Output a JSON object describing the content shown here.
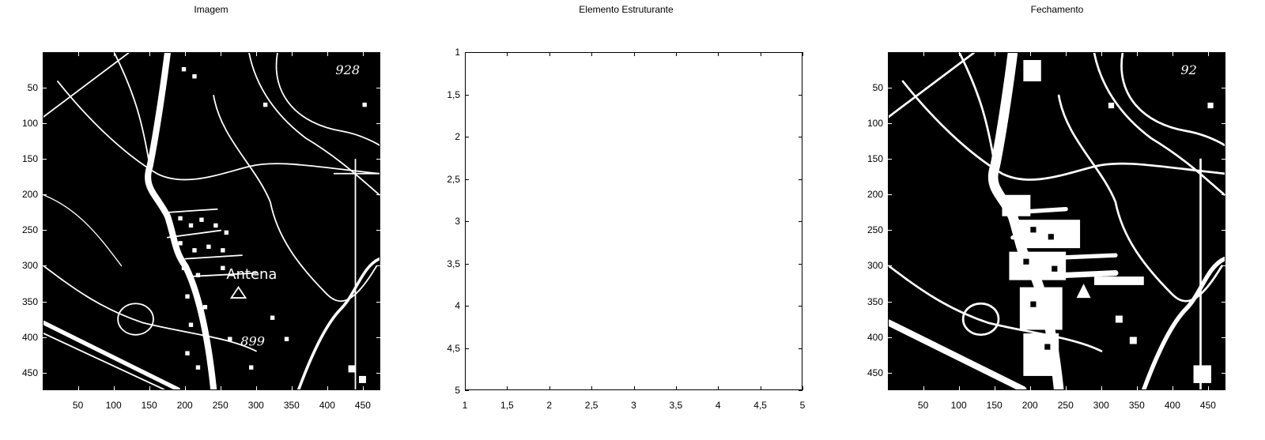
{
  "figure": {
    "panels": [
      {
        "title": "Imagem"
      },
      {
        "title": "Elemento Estruturante"
      },
      {
        "title": "Fechamento"
      }
    ]
  },
  "map_annotations": {
    "label_antena": "Antena",
    "elevation_top": "928",
    "elevation_top_closed": "92",
    "elevation_bottom": "899"
  },
  "chart_data": [
    {
      "type": "heatmap",
      "title": "Imagem",
      "description_kind": "binary image (white features on black background)",
      "xticks": [
        50,
        100,
        150,
        200,
        250,
        300,
        350,
        400,
        450
      ],
      "yticks": [
        50,
        100,
        150,
        200,
        250,
        300,
        350,
        400,
        450
      ],
      "xlim": [
        0.5,
        474.5
      ],
      "ylim": [
        0.5,
        474.5
      ],
      "colors": {
        "background": "#000000",
        "foreground": "#ffffff"
      }
    },
    {
      "type": "heatmap",
      "title": "Elemento Estruturante",
      "xticks": [
        "1",
        "1,5",
        "2",
        "2,5",
        "3",
        "3,5",
        "4",
        "4,5",
        "5"
      ],
      "yticks": [
        "1",
        "1,5",
        "2",
        "2,5",
        "3",
        "3,5",
        "4",
        "4,5",
        "5"
      ],
      "xlim": [
        1,
        5
      ],
      "ylim": [
        1,
        5
      ],
      "values": "all ones (white)",
      "colors": {
        "fill": "#ffffff"
      }
    },
    {
      "type": "heatmap",
      "title": "Fechamento",
      "xticks": [
        50,
        100,
        150,
        200,
        250,
        300,
        350,
        400,
        450
      ],
      "yticks": [
        50,
        100,
        150,
        200,
        250,
        300,
        350,
        400,
        450
      ],
      "xlim": [
        0.5,
        474.5
      ],
      "ylim": [
        0.5,
        474.5
      ],
      "colors": {
        "background": "#000000",
        "foreground": "#ffffff"
      }
    }
  ]
}
